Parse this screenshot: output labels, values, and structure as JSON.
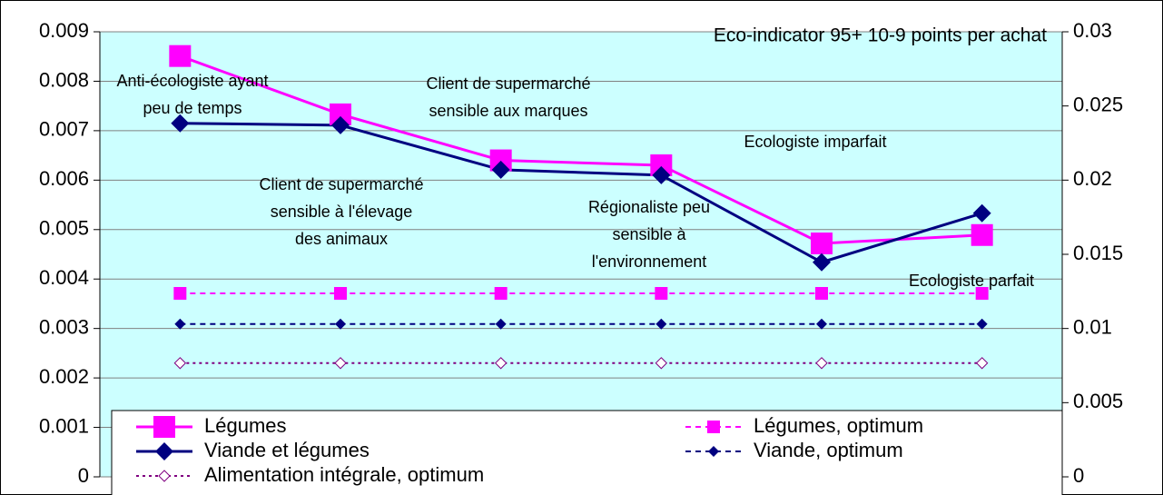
{
  "chart_data": {
    "type": "line",
    "title": "Eco-indicator 95+ 10-9 points per achat",
    "categories": [
      null,
      null,
      null,
      null,
      null,
      null
    ],
    "annotations": [
      {
        "lines": [
          "Anti-écologiste ayant",
          "peu de temps"
        ]
      },
      {
        "lines": [
          "Client de supermarché",
          "sensible à l'élevage",
          "des animaux"
        ]
      },
      {
        "lines": [
          "Client de supermarché",
          "sensible aux marques"
        ]
      },
      {
        "lines": [
          "Régionaliste peu",
          "sensible à",
          "l'environnement"
        ]
      },
      {
        "lines": [
          "Ecologiste imparfait"
        ]
      },
      {
        "lines": [
          "Ecologiste parfait"
        ]
      }
    ],
    "series": [
      {
        "name": "Légumes",
        "color": "#ff00ff",
        "marker": "square",
        "dash": "solid",
        "values": [
          0.00851,
          0.00733,
          0.0064,
          0.0063,
          0.00472,
          0.00489
        ]
      },
      {
        "name": "Viande et légumes",
        "color": "#000080",
        "marker": "diamond",
        "dash": "solid",
        "values": [
          0.00715,
          0.00711,
          0.00621,
          0.0061,
          0.00434,
          0.00533
        ]
      },
      {
        "name": "Alimentation intégrale, optimum",
        "color": "#800080",
        "marker": "hollow-diamond",
        "dash": "dotted",
        "values": [
          0.0023,
          0.0023,
          0.0023,
          0.0023,
          0.0023,
          0.0023
        ]
      },
      {
        "name": "Légumes, optimum",
        "color": "#ff00ff",
        "marker": "small-square",
        "dash": "dashed",
        "values": [
          0.00371,
          0.00371,
          0.00371,
          0.00371,
          0.00371,
          0.00371
        ]
      },
      {
        "name": "Viande, optimum",
        "color": "#000080",
        "marker": "small-diamond",
        "dash": "dashed",
        "values": [
          0.00309,
          0.00309,
          0.00309,
          0.00309,
          0.00309,
          0.00309
        ]
      }
    ],
    "ylim": [
      0,
      0.009
    ],
    "yticks": [
      0,
      0.001,
      0.002,
      0.003,
      0.004,
      0.005,
      0.006,
      0.007,
      0.008,
      0.009
    ],
    "y2lim": [
      0,
      0.03
    ],
    "y2ticks": [
      0,
      0.005,
      0.01,
      0.015,
      0.02,
      0.025,
      0.03
    ],
    "grid": true,
    "legend": "bottom",
    "plot_background": "#ccffff"
  }
}
